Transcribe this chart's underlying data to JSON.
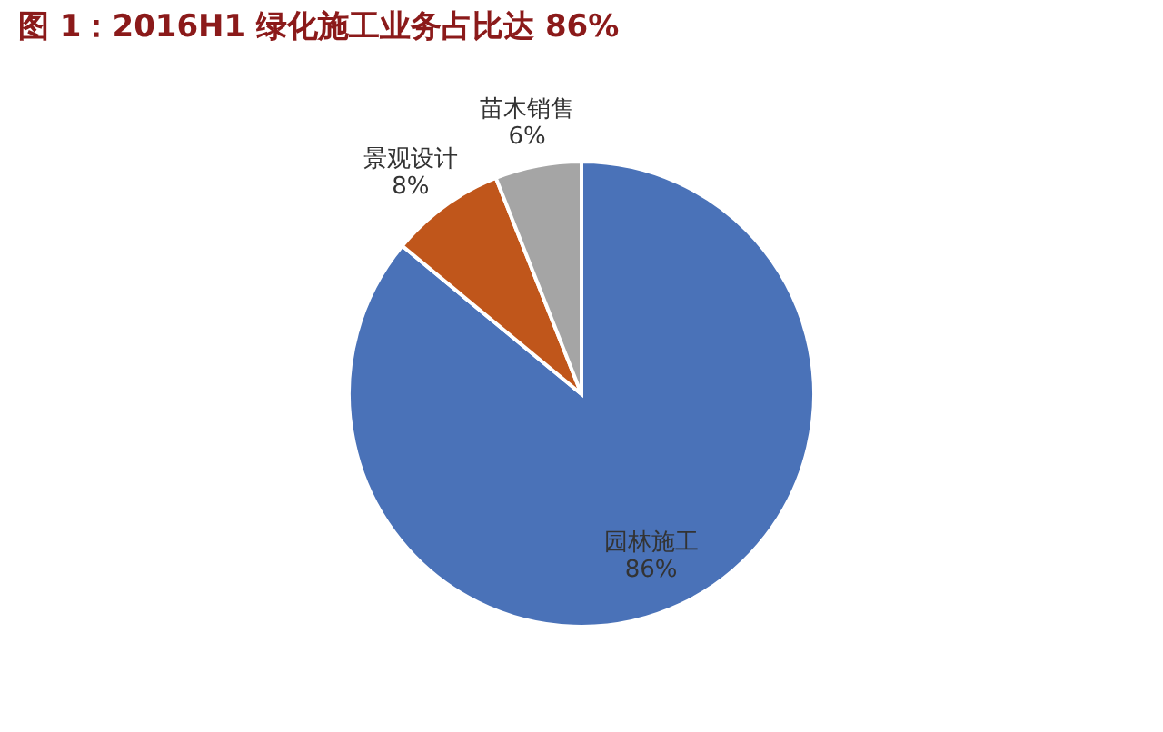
{
  "chart_data": {
    "type": "pie",
    "title": "图 1：2016H1 绿化施工业务占比达 86%",
    "categories": [
      "园林施工",
      "景观设计",
      "苗木销售"
    ],
    "values": [
      86,
      8,
      6
    ],
    "value_labels": [
      "86%",
      "8%",
      "6%"
    ],
    "colors": [
      "#4a72b8",
      "#c0561b",
      "#a5a5a5"
    ],
    "legend": false
  }
}
